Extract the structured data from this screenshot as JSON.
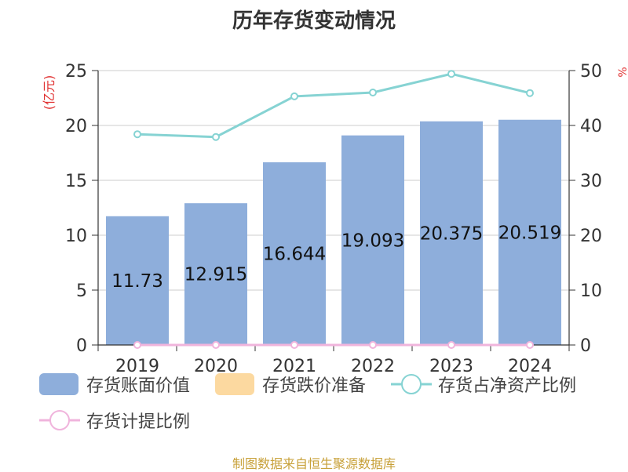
{
  "chart_data": {
    "type": "bar",
    "title": "历年存货变动情况",
    "categories": [
      "2019",
      "2020",
      "2021",
      "2022",
      "2023",
      "2024"
    ],
    "y_left_label": "(亿元)",
    "y_right_label": "%",
    "y_left_ticks": [
      "0",
      "5",
      "10",
      "15",
      "20",
      "25"
    ],
    "y_right_ticks": [
      "0",
      "10",
      "20",
      "30",
      "40",
      "50"
    ],
    "ylim_left": [
      0,
      25
    ],
    "ylim_right": [
      0,
      50
    ],
    "grid": true,
    "series": [
      {
        "name": "存货账面价值",
        "type": "bar",
        "axis": "left",
        "color": "#8eaedb",
        "values": [
          11.73,
          12.915,
          16.644,
          19.093,
          20.375,
          20.519
        ],
        "labels": [
          "11.73",
          "12.915",
          "16.644",
          "19.093",
          "20.375",
          "20.519"
        ]
      },
      {
        "name": "存货跌价准备",
        "type": "bar",
        "axis": "left",
        "color": "#fcd9a0",
        "values": [
          0,
          0,
          0,
          0,
          0,
          0
        ]
      },
      {
        "name": "存货占净资产比例",
        "type": "line",
        "axis": "right",
        "color": "#86d3d3",
        "values": [
          38.4,
          37.9,
          45.3,
          46.0,
          49.4,
          45.9
        ]
      },
      {
        "name": "存货计提比例",
        "type": "line",
        "axis": "right",
        "color": "#f0b4dc",
        "values": [
          0,
          0,
          0,
          0,
          0,
          0
        ]
      }
    ],
    "legend_position": "bottom"
  },
  "source": "制图数据来自恒生聚源数据库"
}
